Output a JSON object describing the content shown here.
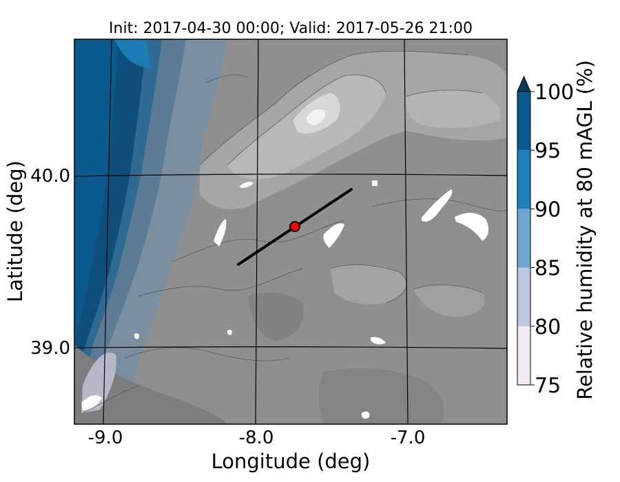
{
  "title": "Init: 2017-04-30 00:00; Valid: 2017-05-26 21:00",
  "axes": {
    "xlabel": "Longitude (deg)",
    "ylabel": "Latitude (deg)",
    "xticks": [
      "-9.0",
      "-8.0",
      "-7.0"
    ],
    "yticks": [
      "40.0",
      "39.0"
    ]
  },
  "colorbar": {
    "label": "Relative humidity at 80 mAGL (%)",
    "ticks": [
      "75",
      "80",
      "85",
      "90",
      "95",
      "100"
    ],
    "levels": [
      75,
      80,
      85,
      90,
      95,
      100
    ],
    "colors": [
      "#efe9f4",
      "#bcc6e0",
      "#6fa7d1",
      "#1d80ba",
      "#095a8e"
    ],
    "extend_color": "#0a3a5f",
    "extend": "max"
  },
  "map": {
    "land_base_color": "#8f8f8f",
    "ocean_color": "#0b5a8e",
    "transect_color": "#000000",
    "site_marker_color": "#ff0000"
  },
  "chart_data": {
    "type": "heatmap",
    "title": "Init: 2017-04-30 00:00; Valid: 2017-05-26 21:00",
    "xlabel": "Longitude (deg)",
    "ylabel": "Latitude (deg)",
    "xlim": [
      -9.25,
      -6.38
    ],
    "ylim": [
      38.55,
      40.8
    ],
    "transect": {
      "start": [
        -8.12,
        39.48
      ],
      "end": [
        -7.37,
        39.93
      ]
    },
    "site_marker": [
      -7.75,
      39.69
    ],
    "colorbar_range": [
      75,
      100
    ],
    "extend": "max"
  }
}
